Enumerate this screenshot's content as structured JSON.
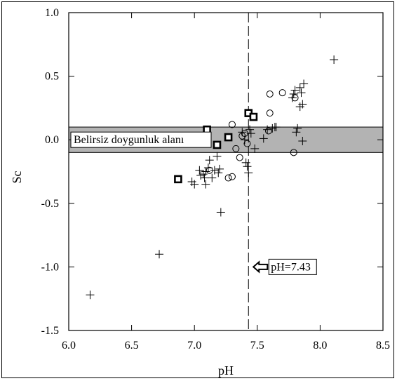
{
  "chart_data": {
    "type": "scatter",
    "xlabel": "pH",
    "ylabel": "Sc",
    "xlim": [
      6.0,
      8.5
    ],
    "ylim": [
      -1.5,
      1.0
    ],
    "xticks": [
      "6.0",
      "6.5",
      "7.0",
      "7.5",
      "8.0",
      "8.5"
    ],
    "yticks": [
      "1.0",
      "0.5",
      "0.0",
      "-0.5",
      "-1.0",
      "-1.5"
    ],
    "grid": false,
    "band": {
      "label": "Belirsiz doygunluk alanı",
      "y_min": -0.1,
      "y_max": 0.1
    },
    "vline": {
      "x": 7.43,
      "label": "pH=7.43"
    },
    "series": [
      {
        "marker": "plus",
        "points": [
          [
            6.17,
            -1.22
          ],
          [
            6.72,
            -0.9
          ],
          [
            7.21,
            -0.57
          ],
          [
            6.98,
            -0.33
          ],
          [
            7.0,
            -0.35
          ],
          [
            7.04,
            -0.24
          ],
          [
            7.05,
            -0.28
          ],
          [
            7.07,
            -0.27
          ],
          [
            7.09,
            -0.25
          ],
          [
            7.09,
            -0.35
          ],
          [
            7.11,
            -0.22
          ],
          [
            7.12,
            -0.16
          ],
          [
            7.14,
            -0.3
          ],
          [
            7.16,
            -0.24
          ],
          [
            7.18,
            -0.13
          ],
          [
            7.19,
            -0.26
          ],
          [
            7.2,
            -0.23
          ],
          [
            7.08,
            -0.3
          ],
          [
            7.38,
            0.06
          ],
          [
            7.4,
            0.0
          ],
          [
            7.41,
            -0.18
          ],
          [
            7.42,
            -0.21
          ],
          [
            7.43,
            -0.26
          ],
          [
            7.44,
            0.08
          ],
          [
            7.45,
            0.05
          ],
          [
            7.48,
            -0.07
          ],
          [
            7.55,
            0.01
          ],
          [
            7.58,
            0.08
          ],
          [
            7.62,
            0.09
          ],
          [
            7.64,
            0.1
          ],
          [
            7.65,
            0.1
          ],
          [
            7.78,
            0.33
          ],
          [
            7.79,
            0.36
          ],
          [
            7.8,
            0.39
          ],
          [
            7.81,
            0.06
          ],
          [
            7.82,
            0.09
          ],
          [
            7.84,
            0.41
          ],
          [
            7.84,
            0.26
          ],
          [
            7.85,
            0.37
          ],
          [
            7.86,
            0.28
          ],
          [
            7.86,
            -0.01
          ],
          [
            7.87,
            0.44
          ],
          [
            8.11,
            0.63
          ]
        ]
      },
      {
        "marker": "circle",
        "points": [
          [
            7.12,
            -0.24
          ],
          [
            7.27,
            -0.3
          ],
          [
            7.3,
            -0.29
          ],
          [
            7.3,
            0.12
          ],
          [
            7.33,
            -0.07
          ],
          [
            7.36,
            -0.14
          ],
          [
            7.38,
            0.03
          ],
          [
            7.4,
            0.05
          ],
          [
            7.42,
            -0.03
          ],
          [
            7.59,
            0.07
          ],
          [
            7.6,
            0.21
          ],
          [
            7.6,
            0.36
          ],
          [
            7.7,
            0.37
          ],
          [
            7.79,
            -0.1
          ],
          [
            7.8,
            0.33
          ]
        ]
      },
      {
        "marker": "square",
        "points": [
          [
            6.87,
            -0.31
          ],
          [
            7.1,
            0.08
          ],
          [
            7.18,
            -0.04
          ],
          [
            7.27,
            0.02
          ],
          [
            7.43,
            0.21
          ],
          [
            7.47,
            0.18
          ]
        ]
      }
    ]
  }
}
